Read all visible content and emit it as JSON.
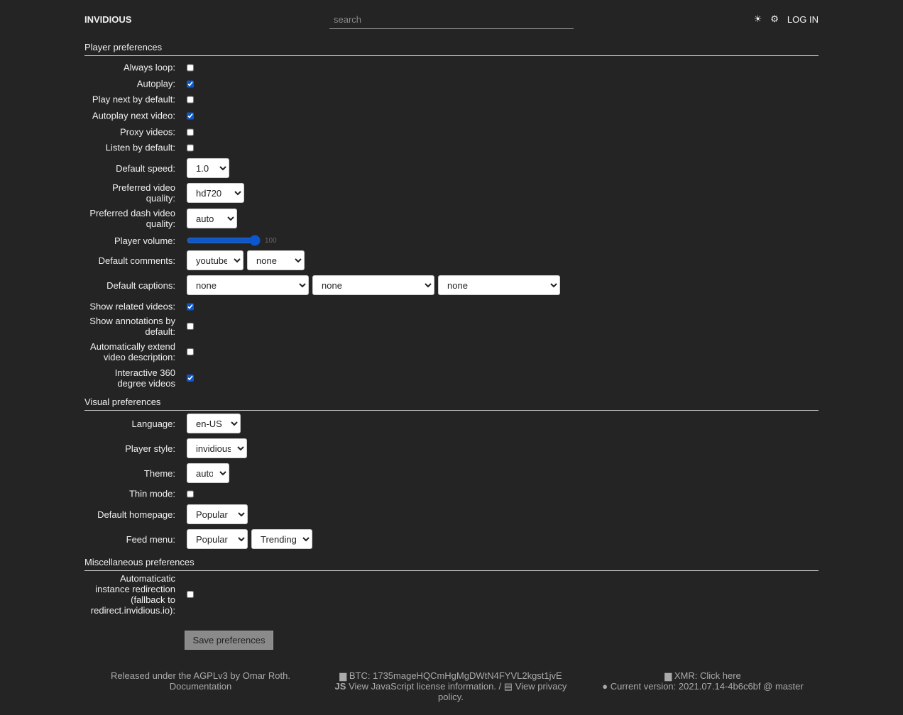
{
  "header": {
    "brand": "INVIDIOUS",
    "search_placeholder": "search",
    "theme_icon": "sun-icon",
    "settings_icon": "gear-icon",
    "login": "LOG IN"
  },
  "player": {
    "title": "Player preferences",
    "always_loop": {
      "label": "Always loop:",
      "checked": false
    },
    "autoplay": {
      "label": "Autoplay:",
      "checked": true
    },
    "play_next": {
      "label": "Play next by default:",
      "checked": false
    },
    "autoplay_next": {
      "label": "Autoplay next video:",
      "checked": true
    },
    "proxy": {
      "label": "Proxy videos:",
      "checked": false
    },
    "listen": {
      "label": "Listen by default:",
      "checked": false
    },
    "speed": {
      "label": "Default speed:",
      "value": "1.0"
    },
    "quality": {
      "label": "Preferred video quality:",
      "value": "hd720"
    },
    "dash": {
      "label": "Preferred dash video quality:",
      "value": "auto"
    },
    "volume": {
      "label": "Player volume:",
      "value": "100"
    },
    "comments": {
      "label": "Default comments:",
      "values": [
        "youtube",
        "none"
      ]
    },
    "captions": {
      "label": "Default captions:",
      "values": [
        "none",
        "none",
        "none"
      ]
    },
    "related": {
      "label": "Show related videos:",
      "checked": true
    },
    "annotations": {
      "label": "Show annotations by default:",
      "checked": false
    },
    "extend": {
      "label": "Automatically extend video description:",
      "checked": false
    },
    "vr": {
      "label": "Interactive 360 degree videos",
      "checked": true
    }
  },
  "visual": {
    "title": "Visual preferences",
    "language": {
      "label": "Language:",
      "value": "en-US"
    },
    "style": {
      "label": "Player style:",
      "value": "invidious"
    },
    "theme": {
      "label": "Theme:",
      "value": "auto"
    },
    "thin": {
      "label": "Thin mode:",
      "checked": false
    },
    "homepage": {
      "label": "Default homepage:",
      "value": "Popular"
    },
    "feed": {
      "label": "Feed menu:",
      "values": [
        "Popular",
        "Trending"
      ]
    }
  },
  "misc": {
    "title": "Miscellaneous preferences",
    "redirect": {
      "label": "Automaticatic instance redirection (fallback to redirect.invidious.io):",
      "checked": false
    }
  },
  "save": "Save preferences",
  "footer": {
    "license": "Released under the AGPLv3 by Omar Roth.",
    "docs": "Documentation",
    "btc": "BTC: 1735mageHQCmHgMgDWtN4FYVL2kgst1jvE",
    "js": "View JavaScript license information.",
    "sep": " / ",
    "privacy": "View privacy policy.",
    "xmr": "XMR: Click here",
    "version": "Current version: 2021.07.14-4b6c6bf @ master"
  }
}
